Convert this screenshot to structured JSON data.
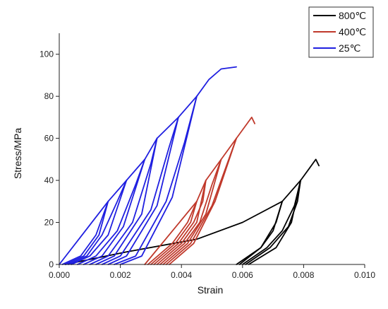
{
  "chart_data": {
    "type": "line",
    "xlabel": "Strain",
    "ylabel": "Stress/MPa",
    "xlim": [
      0,
      0.01
    ],
    "ylim": [
      0,
      110
    ],
    "x_ticks": [
      "0.000",
      "0.002",
      "0.004",
      "0.006",
      "0.008",
      "0.010"
    ],
    "y_ticks": [
      "0",
      "20",
      "40",
      "60",
      "80",
      "100"
    ],
    "legend_position": "top-right",
    "series": [
      {
        "name": "800℃",
        "color": "#000000",
        "segments": [
          [
            [
              0.0002,
              0
            ],
            [
              0.0022,
              6
            ],
            [
              0.0045,
              12
            ],
            [
              0.006,
              20
            ],
            [
              0.0073,
              30
            ],
            [
              0.0079,
              40
            ],
            [
              0.0082,
              46
            ],
            [
              0.0084,
              50
            ],
            [
              0.0085,
              47
            ]
          ],
          [
            [
              0.0058,
              0
            ],
            [
              0.0066,
              8
            ],
            [
              0.0071,
              20
            ],
            [
              0.0073,
              30
            ]
          ],
          [
            [
              0.0059,
              0
            ],
            [
              0.0066,
              8
            ],
            [
              0.007,
              16
            ],
            [
              0.0073,
              30
            ]
          ],
          [
            [
              0.006,
              0
            ],
            [
              0.0068,
              8
            ],
            [
              0.0073,
              16
            ],
            [
              0.0077,
              28
            ],
            [
              0.0079,
              40
            ]
          ],
          [
            [
              0.0061,
              0
            ],
            [
              0.0069,
              8
            ],
            [
              0.0075,
              18
            ],
            [
              0.0078,
              30
            ],
            [
              0.0079,
              40
            ]
          ],
          [
            [
              0.0062,
              0
            ],
            [
              0.0071,
              8
            ],
            [
              0.0076,
              20
            ],
            [
              0.0079,
              40
            ]
          ]
        ]
      },
      {
        "name": "400℃",
        "color": "#c0392b",
        "segments": [
          [
            [
              0.0028,
              0
            ],
            [
              0.0045,
              30
            ],
            [
              0.0048,
              40
            ],
            [
              0.0053,
              50
            ],
            [
              0.0058,
              60
            ],
            [
              0.0063,
              70
            ],
            [
              0.0064,
              67
            ]
          ],
          [
            [
              0.0029,
              0
            ],
            [
              0.0037,
              10
            ],
            [
              0.0042,
              20
            ],
            [
              0.0045,
              30
            ]
          ],
          [
            [
              0.003,
              0
            ],
            [
              0.0038,
              10
            ],
            [
              0.0043,
              20
            ],
            [
              0.0045,
              30
            ]
          ],
          [
            [
              0.0031,
              0
            ],
            [
              0.0039,
              10
            ],
            [
              0.0044,
              20
            ],
            [
              0.0047,
              30
            ],
            [
              0.0048,
              40
            ]
          ],
          [
            [
              0.0032,
              0
            ],
            [
              0.004,
              10
            ],
            [
              0.0045,
              20
            ],
            [
              0.0048,
              40
            ]
          ],
          [
            [
              0.0033,
              0
            ],
            [
              0.0041,
              10
            ],
            [
              0.0046,
              20
            ],
            [
              0.005,
              38
            ],
            [
              0.0053,
              50
            ]
          ],
          [
            [
              0.0034,
              0
            ],
            [
              0.0042,
              10
            ],
            [
              0.0048,
              24
            ],
            [
              0.0053,
              50
            ]
          ],
          [
            [
              0.0035,
              0
            ],
            [
              0.0043,
              10
            ],
            [
              0.005,
              28
            ],
            [
              0.0055,
              48
            ],
            [
              0.0058,
              60
            ]
          ],
          [
            [
              0.0036,
              0
            ],
            [
              0.0044,
              10
            ],
            [
              0.0051,
              30
            ],
            [
              0.0058,
              60
            ]
          ]
        ]
      },
      {
        "name": "25℃",
        "color": "#1f1fe0",
        "segments": [
          [
            [
              0.0,
              0
            ],
            [
              0.0016,
              30
            ],
            [
              0.0022,
              40
            ],
            [
              0.0028,
              50
            ],
            [
              0.0032,
              60
            ],
            [
              0.0039,
              70
            ],
            [
              0.0045,
              80
            ],
            [
              0.0049,
              88
            ],
            [
              0.0053,
              93
            ],
            [
              0.0058,
              94
            ]
          ],
          [
            [
              0.0001,
              0
            ],
            [
              0.0007,
              4
            ],
            [
              0.0012,
              14
            ],
            [
              0.0016,
              30
            ]
          ],
          [
            [
              0.0002,
              0
            ],
            [
              0.0008,
              4
            ],
            [
              0.0013,
              14
            ],
            [
              0.0016,
              30
            ]
          ],
          [
            [
              0.0003,
              0
            ],
            [
              0.0009,
              4
            ],
            [
              0.0014,
              14
            ],
            [
              0.0019,
              30
            ],
            [
              0.0022,
              40
            ]
          ],
          [
            [
              0.0004,
              0
            ],
            [
              0.001,
              4
            ],
            [
              0.0016,
              14
            ],
            [
              0.0022,
              40
            ]
          ],
          [
            [
              0.0006,
              0
            ],
            [
              0.0012,
              4
            ],
            [
              0.0019,
              16
            ],
            [
              0.0025,
              38
            ],
            [
              0.0028,
              50
            ]
          ],
          [
            [
              0.0008,
              0
            ],
            [
              0.0014,
              4
            ],
            [
              0.0021,
              18
            ],
            [
              0.0028,
              50
            ]
          ],
          [
            [
              0.001,
              0
            ],
            [
              0.0016,
              4
            ],
            [
              0.0024,
              20
            ],
            [
              0.003,
              48
            ],
            [
              0.0032,
              60
            ]
          ],
          [
            [
              0.0012,
              0
            ],
            [
              0.0018,
              4
            ],
            [
              0.0027,
              24
            ],
            [
              0.0032,
              60
            ]
          ],
          [
            [
              0.0014,
              0
            ],
            [
              0.002,
              4
            ],
            [
              0.003,
              26
            ],
            [
              0.0036,
              56
            ],
            [
              0.0039,
              70
            ]
          ],
          [
            [
              0.0016,
              0
            ],
            [
              0.0022,
              4
            ],
            [
              0.0032,
              28
            ],
            [
              0.0039,
              70
            ]
          ],
          [
            [
              0.0018,
              0
            ],
            [
              0.0025,
              4
            ],
            [
              0.0035,
              30
            ],
            [
              0.0041,
              58
            ],
            [
              0.0045,
              80
            ]
          ],
          [
            [
              0.002,
              0
            ],
            [
              0.0027,
              4
            ],
            [
              0.0037,
              32
            ],
            [
              0.0045,
              80
            ]
          ]
        ]
      }
    ]
  }
}
